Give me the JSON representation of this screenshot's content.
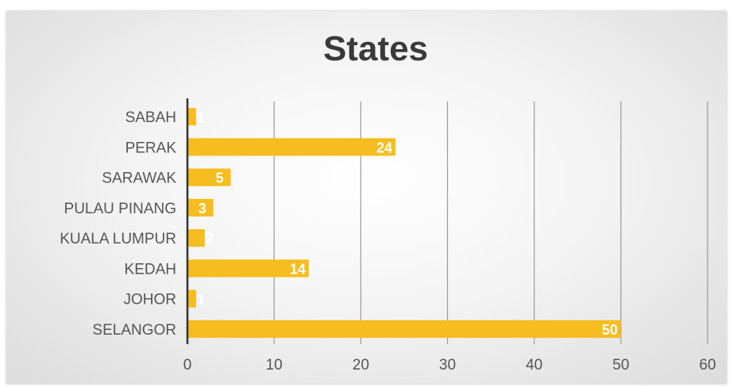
{
  "chart_data": {
    "type": "bar",
    "orientation": "horizontal",
    "title": "States",
    "categories": [
      "SABAH",
      "PERAK",
      "SARAWAK",
      "PULAU PINANG",
      "KUALA LUMPUR",
      "KEDAH",
      "JOHOR",
      "SELANGOR"
    ],
    "values": [
      1,
      24,
      5,
      3,
      2,
      14,
      1,
      50
    ],
    "xlim": [
      0,
      60
    ],
    "xticks": [
      0,
      10,
      20,
      30,
      40,
      50,
      60
    ],
    "grid": "vertical",
    "legend": "none",
    "data_labels": true,
    "colors": {
      "bar": "#f5bd1f",
      "grid": "#9a9a9a",
      "axis": "#333333",
      "label_text": "#ffffff"
    }
  }
}
